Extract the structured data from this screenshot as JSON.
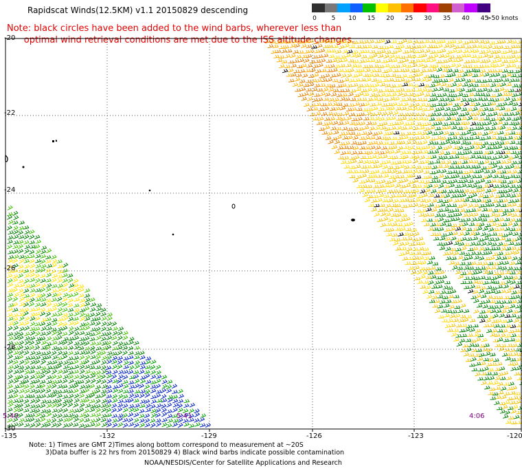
{
  "header": {
    "title": "Rapidscat Winds(12.5KM) v1.1 20150829 descending",
    "note_line1": "Note: black circles have been added to the wind barbs, wherever less than",
    "note_line2": "      optimal wind retrieval conditions are met due to the ISS altitude changes."
  },
  "legend": {
    "unit": ">50 knots",
    "ticks": [
      "0",
      "5",
      "10",
      "15",
      "20",
      "25",
      "30",
      "35",
      "40",
      "45"
    ],
    "colors": [
      "#303030",
      "#787878",
      "#00a0ff",
      "#1060ff",
      "#00c000",
      "#ffff00",
      "#ffc000",
      "#ff7000",
      "#ff0000",
      "#ff1080",
      "#a04000",
      "#d060d0",
      "#c000ff",
      "#400080"
    ]
  },
  "axes": {
    "lat_labels": [
      "-20",
      "-22",
      "-24",
      "-26",
      "-28",
      "-30"
    ],
    "lon_labels": [
      "-135",
      "-132",
      "-129",
      "-126",
      "-123",
      "-120"
    ]
  },
  "times": {
    "left": "5:40",
    "middle": "5:41",
    "right": "4:06"
  },
  "footer": {
    "line1": "Note: 1) Times are GMT 2)Times along bottom correspond to measurement at ~20S",
    "line2": "3)Data buffer is 22 hrs from 20150829 4) Black wind barbs indicate possible contamination",
    "credit": "NOAA/NESDIS/Center for Satellite Applications and Research"
  },
  "wind_swaths": [
    {
      "name": "east-swath",
      "dominant_speed_knots": "20-30"
    },
    {
      "name": "southwest-swath",
      "dominant_speed_knots": "10-25"
    }
  ]
}
